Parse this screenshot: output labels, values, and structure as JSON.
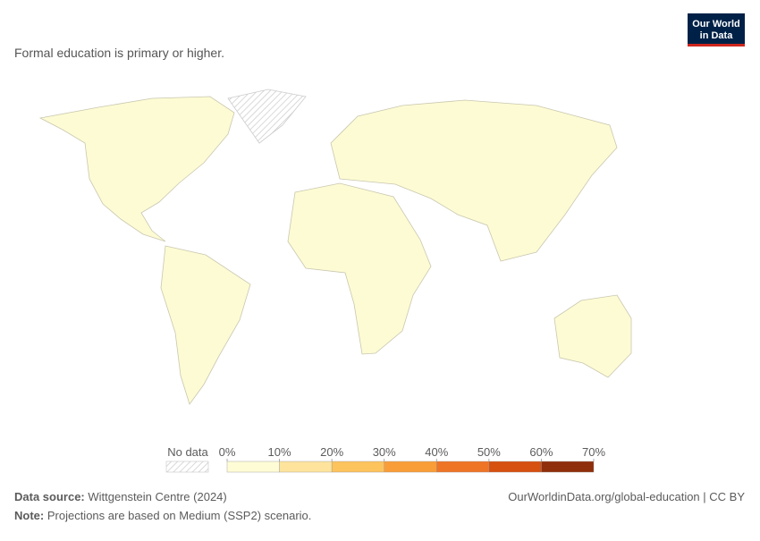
{
  "logo": [
    "Our World",
    "in Data"
  ],
  "subtitle": "Formal education is primary or higher.",
  "legend": {
    "no_data": "No data",
    "ticks": [
      {
        "value": 0,
        "label": "0%"
      },
      {
        "value": 10,
        "label": "10%"
      },
      {
        "value": 20,
        "label": "20%"
      },
      {
        "value": 30,
        "label": "30%"
      },
      {
        "value": 40,
        "label": "40%"
      },
      {
        "value": 50,
        "label": "50%"
      },
      {
        "value": 60,
        "label": "60%"
      },
      {
        "value": 70,
        "label": "70%"
      }
    ],
    "colors": [
      "#fefcd5",
      "#fde39c",
      "#fdc35c",
      "#f99d38",
      "#ee7426",
      "#d6500f",
      "#8f2e0b"
    ]
  },
  "footer": {
    "source_label": "Data source:",
    "source": "Wittgenstein Centre (2024)",
    "url": "OurWorldinData.org/global-education | CC BY",
    "note_label": "Note:",
    "note": "Projections are based on Medium (SSP2) scenario."
  }
}
